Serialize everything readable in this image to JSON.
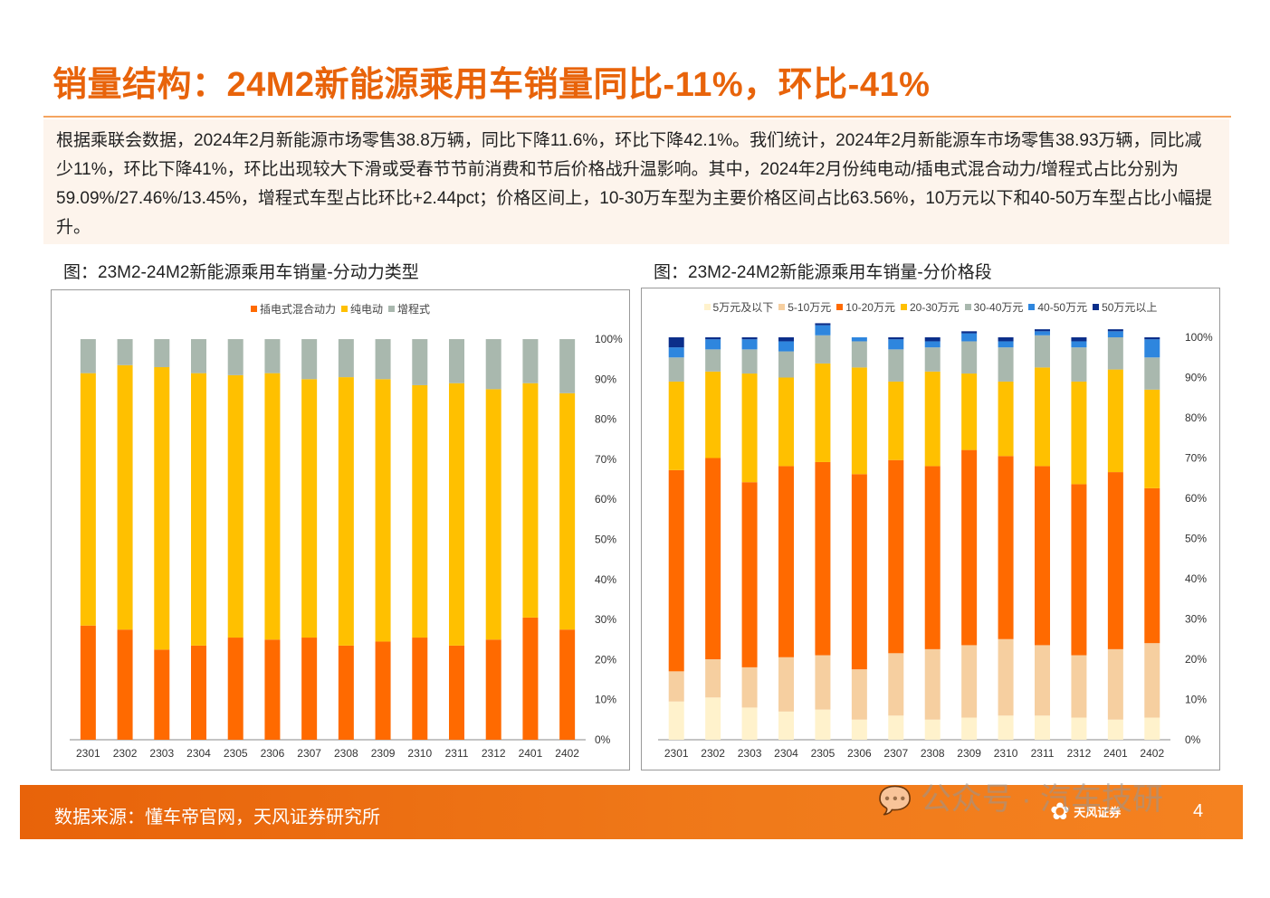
{
  "header": {
    "title": "销量结构：24M2新能源乘用车销量同比-11%，环比-41%"
  },
  "summary": {
    "text": "根据乘联会数据，2024年2月新能源市场零售38.8万辆，同比下降11.6%，环比下降42.1%。我们统计，2024年2月新能源车市场零售38.93万辆，同比减少11%，环比下降41%，环比出现较大下滑或受春节节前消费和节后价格战升温影响。其中，2024年2月份纯电动/插电式混合动力/增程式占比分别为59.09%/27.46%/13.45%，增程式车型占比环比+2.44pct；价格区间上，10-30万车型为主要价格区间占比63.56%，10万元以下和40-50万车型占比小幅提升。"
  },
  "chart_left": {
    "title": "图：23M2-24M2新能源乘用车销量-分动力类型"
  },
  "chart_right": {
    "title": "图：23M2-24M2新能源乘用车销量-分价格段"
  },
  "footer": {
    "source": "数据来源：懂车帝官网，天风证券研究所",
    "brand": "天风证券",
    "page": "4"
  },
  "watermark": {
    "text": "公众号 · 汽车技研"
  },
  "colors": {
    "accent": "#E8630A",
    "phev": "#FF6A00",
    "bev": "#FFC000",
    "erev": "#A9B8AE",
    "p1": "#FFF2CC",
    "p2": "#F6CFA0",
    "p3": "#FF6A00",
    "p4": "#FFC000",
    "p5": "#A9B8AE",
    "p6": "#2E86DE",
    "p7": "#0B2E8A"
  },
  "chart_data": [
    {
      "type": "bar",
      "stacked": true,
      "normalized": true,
      "categories": [
        "2301",
        "2302",
        "2303",
        "2304",
        "2305",
        "2306",
        "2307",
        "2308",
        "2309",
        "2310",
        "2311",
        "2312",
        "2401",
        "2402"
      ],
      "series": [
        {
          "name": "插电式混合动力",
          "color": "#FF6A00",
          "values": [
            28.5,
            27.5,
            22.5,
            23.5,
            25.5,
            25.0,
            25.5,
            23.5,
            24.5,
            25.5,
            23.5,
            25.0,
            30.5,
            27.5
          ]
        },
        {
          "name": "纯电动",
          "color": "#FFC000",
          "values": [
            63.0,
            66.0,
            70.5,
            68.0,
            65.5,
            66.5,
            64.5,
            67.0,
            65.5,
            63.0,
            65.5,
            62.5,
            58.5,
            59.0
          ]
        },
        {
          "name": "增程式",
          "color": "#A9B8AE",
          "values": [
            8.5,
            6.5,
            7.0,
            8.5,
            9.0,
            8.5,
            10.0,
            9.5,
            10.0,
            11.5,
            11.0,
            12.5,
            11.0,
            13.5
          ]
        }
      ],
      "ylim": [
        0,
        100
      ],
      "yticks": [
        "0%",
        "10%",
        "20%",
        "30%",
        "40%",
        "50%",
        "60%",
        "70%",
        "80%",
        "90%",
        "100%"
      ],
      "legend_position": "top-center",
      "grid": false
    },
    {
      "type": "bar",
      "stacked": true,
      "normalized": true,
      "categories": [
        "2301",
        "2302",
        "2303",
        "2304",
        "2305",
        "2306",
        "2307",
        "2308",
        "2309",
        "2310",
        "2311",
        "2312",
        "2401",
        "2402"
      ],
      "series": [
        {
          "name": "5万元及以下",
          "color": "#FFF2CC",
          "values": [
            9.5,
            10.5,
            8.0,
            7.0,
            7.5,
            5.0,
            6.0,
            5.0,
            5.5,
            6.0,
            6.0,
            5.5,
            5.0,
            5.5
          ]
        },
        {
          "name": "5-10万元",
          "color": "#F6CFA0",
          "values": [
            7.5,
            9.5,
            10.0,
            13.5,
            13.5,
            12.5,
            15.5,
            17.5,
            18.0,
            19.0,
            17.5,
            15.5,
            17.5,
            18.5
          ]
        },
        {
          "name": "10-20万元",
          "color": "#FF6A00",
          "values": [
            50.0,
            50.0,
            46.0,
            47.5,
            48.0,
            48.5,
            48.0,
            45.5,
            48.5,
            45.5,
            44.5,
            42.5,
            44.0,
            38.5
          ]
        },
        {
          "name": "20-30万元",
          "color": "#FFC000",
          "values": [
            22.0,
            21.5,
            27.0,
            22.0,
            24.5,
            26.5,
            19.5,
            23.5,
            19.0,
            18.5,
            24.5,
            25.5,
            25.5,
            24.5
          ]
        },
        {
          "name": "30-40万元",
          "color": "#A9B8AE",
          "values": [
            6.0,
            5.5,
            6.0,
            6.5,
            7.0,
            6.5,
            8.0,
            6.0,
            8.0,
            8.5,
            8.0,
            8.5,
            8.0,
            8.0
          ]
        },
        {
          "name": "40-50万元",
          "color": "#2E86DE",
          "values": [
            2.5,
            2.5,
            2.5,
            2.5,
            2.5,
            1.0,
            2.5,
            1.5,
            2.0,
            1.5,
            1.0,
            1.5,
            1.5,
            4.5
          ]
        },
        {
          "name": "50万元以上",
          "color": "#0B2E8A",
          "values": [
            2.5,
            0.5,
            0.5,
            1.0,
            0.5,
            0.0,
            0.5,
            1.0,
            0.5,
            1.0,
            0.5,
            1.0,
            0.5,
            0.5
          ]
        }
      ],
      "ylim": [
        0,
        100
      ],
      "yticks": [
        "0%",
        "10%",
        "20%",
        "30%",
        "40%",
        "50%",
        "60%",
        "70%",
        "80%",
        "90%",
        "100%"
      ],
      "legend_position": "top-center",
      "grid": false
    }
  ]
}
